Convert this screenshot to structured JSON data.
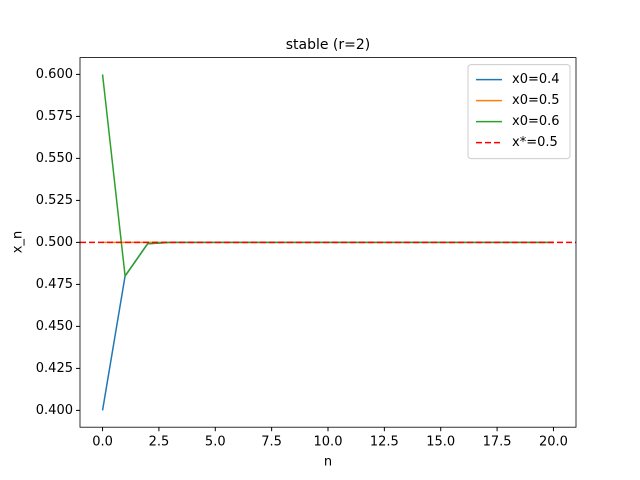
{
  "chart_data": {
    "type": "line",
    "title": "stable (r=2)",
    "xlabel": "n",
    "ylabel": "x_n",
    "x": [
      0,
      1,
      2,
      3,
      4,
      5,
      6,
      7,
      8,
      9,
      10,
      11,
      12,
      13,
      14,
      15,
      16,
      17,
      18,
      19,
      20
    ],
    "series": [
      {
        "name": "x0=0.4",
        "color": "#1f77b4",
        "values": [
          0.4,
          0.48,
          0.4992,
          0.49999872,
          0.5,
          0.5,
          0.5,
          0.5,
          0.5,
          0.5,
          0.5,
          0.5,
          0.5,
          0.5,
          0.5,
          0.5,
          0.5,
          0.5,
          0.5,
          0.5,
          0.5
        ]
      },
      {
        "name": "x0=0.5",
        "color": "#ff7f0e",
        "values": [
          0.5,
          0.5,
          0.5,
          0.5,
          0.5,
          0.5,
          0.5,
          0.5,
          0.5,
          0.5,
          0.5,
          0.5,
          0.5,
          0.5,
          0.5,
          0.5,
          0.5,
          0.5,
          0.5,
          0.5,
          0.5
        ]
      },
      {
        "name": "x0=0.6",
        "color": "#2ca02c",
        "values": [
          0.6,
          0.48,
          0.4992,
          0.49999872,
          0.5,
          0.5,
          0.5,
          0.5,
          0.5,
          0.5,
          0.5,
          0.5,
          0.5,
          0.5,
          0.5,
          0.5,
          0.5,
          0.5,
          0.5,
          0.5,
          0.5
        ]
      }
    ],
    "hlines": [
      {
        "name": "x*=0.5",
        "value": 0.5,
        "color": "#ff0000",
        "dash": true
      }
    ],
    "xlim": [
      -1,
      21
    ],
    "xticks": [
      {
        "value": 0,
        "label": "0.0"
      },
      {
        "value": 2.5,
        "label": "2.5"
      },
      {
        "value": 5,
        "label": "5.0"
      },
      {
        "value": 7.5,
        "label": "7.5"
      },
      {
        "value": 10,
        "label": "10.0"
      },
      {
        "value": 12.5,
        "label": "12.5"
      },
      {
        "value": 15,
        "label": "15.0"
      },
      {
        "value": 17.5,
        "label": "17.5"
      },
      {
        "value": 20,
        "label": "20.0"
      }
    ],
    "ylim": [
      0.39,
      0.61
    ],
    "yticks": [
      {
        "value": 0.4,
        "label": "0.400"
      },
      {
        "value": 0.425,
        "label": "0.425"
      },
      {
        "value": 0.45,
        "label": "0.450"
      },
      {
        "value": 0.475,
        "label": "0.475"
      },
      {
        "value": 0.5,
        "label": "0.500"
      },
      {
        "value": 0.525,
        "label": "0.525"
      },
      {
        "value": 0.55,
        "label": "0.550"
      },
      {
        "value": 0.575,
        "label": "0.575"
      },
      {
        "value": 0.6,
        "label": "0.600"
      }
    ],
    "legend": "upper right",
    "grid": false
  }
}
